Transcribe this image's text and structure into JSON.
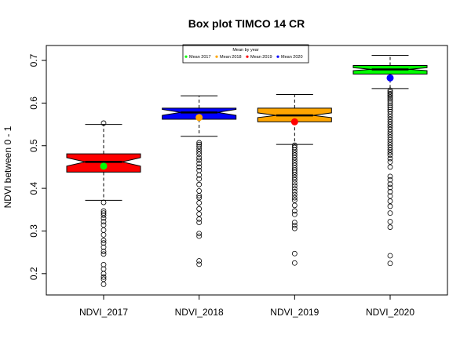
{
  "chart_data": {
    "type": "box",
    "title": "Box plot TIMCO 14 CR",
    "xlabel": "",
    "ylabel": "NDVI between 0 - 1",
    "ylim": [
      0.15,
      0.735
    ],
    "y_ticks": [
      "0.2",
      "0.3",
      "0.4",
      "0.5",
      "0.6",
      "0.7"
    ],
    "grid": false,
    "categories": [
      "NDVI_2017",
      "NDVI_2018",
      "NDVI_2019",
      "NDVI_2020"
    ],
    "boxes": [
      {
        "name": "NDVI_2017",
        "fill": "#ff0000",
        "q1": 0.438,
        "median": 0.462,
        "q3": 0.481,
        "notch_low": 0.452,
        "notch_high": 0.472,
        "whisker_low": 0.372,
        "whisker_high": 0.55,
        "mean": 0.452,
        "mean_color": "#00ff00",
        "outliers": [
          0.553,
          0.367,
          0.347,
          0.342,
          0.337,
          0.33,
          0.322,
          0.314,
          0.302,
          0.291,
          0.278,
          0.272,
          0.262,
          0.252,
          0.246,
          0.221,
          0.211,
          0.2,
          0.192,
          0.187,
          0.175
        ]
      },
      {
        "name": "NDVI_2018",
        "fill": "#0000ff",
        "q1": 0.562,
        "median": 0.578,
        "q3": 0.588,
        "notch_low": 0.571,
        "notch_high": 0.585,
        "whisker_low": 0.522,
        "whisker_high": 0.617,
        "mean": 0.566,
        "mean_color": "#ffa500",
        "outliers": [
          0.507,
          0.503,
          0.498,
          0.492,
          0.486,
          0.48,
          0.472,
          0.466,
          0.458,
          0.45,
          0.442,
          0.431,
          0.422,
          0.409,
          0.394,
          0.383,
          0.378,
          0.366,
          0.352,
          0.34,
          0.328,
          0.32,
          0.294,
          0.288,
          0.23,
          0.222
        ]
      },
      {
        "name": "NDVI_2019",
        "fill": "#ffa500",
        "q1": 0.556,
        "median": 0.571,
        "q3": 0.588,
        "notch_low": 0.566,
        "notch_high": 0.577,
        "whisker_low": 0.503,
        "whisker_high": 0.62,
        "mean": 0.556,
        "mean_color": "#ff0000",
        "outliers": [
          0.501,
          0.496,
          0.49,
          0.484,
          0.478,
          0.472,
          0.466,
          0.46,
          0.454,
          0.448,
          0.443,
          0.438,
          0.432,
          0.426,
          0.42,
          0.413,
          0.406,
          0.399,
          0.392,
          0.385,
          0.378,
          0.372,
          0.36,
          0.347,
          0.339,
          0.32,
          0.313,
          0.306,
          0.247,
          0.225
        ]
      },
      {
        "name": "NDVI_2020",
        "fill": "#00ff00",
        "q1": 0.668,
        "median": 0.679,
        "q3": 0.688,
        "notch_low": 0.676,
        "notch_high": 0.683,
        "whisker_low": 0.634,
        "whisker_high": 0.712,
        "mean": 0.659,
        "mean_color": "#0000ff",
        "outliers": [
          0.63,
          0.626,
          0.622,
          0.618,
          0.614,
          0.61,
          0.605,
          0.6,
          0.595,
          0.59,
          0.585,
          0.58,
          0.574,
          0.568,
          0.562,
          0.556,
          0.55,
          0.544,
          0.538,
          0.532,
          0.526,
          0.52,
          0.514,
          0.508,
          0.502,
          0.496,
          0.49,
          0.484,
          0.478,
          0.47,
          0.462,
          0.45,
          0.428,
          0.42,
          0.41,
          0.402,
          0.392,
          0.382,
          0.37,
          0.358,
          0.342,
          0.322,
          0.309,
          0.242,
          0.224
        ]
      }
    ],
    "legend": {
      "title": "Mean by year",
      "position": "top-center",
      "entries": [
        {
          "label": "Mean 2017",
          "color": "#00ff00"
        },
        {
          "label": "Mean 2018",
          "color": "#ffa500"
        },
        {
          "label": "Mean 2019",
          "color": "#ff0000"
        },
        {
          "label": "Mean 2020",
          "color": "#0000ff"
        }
      ]
    }
  }
}
